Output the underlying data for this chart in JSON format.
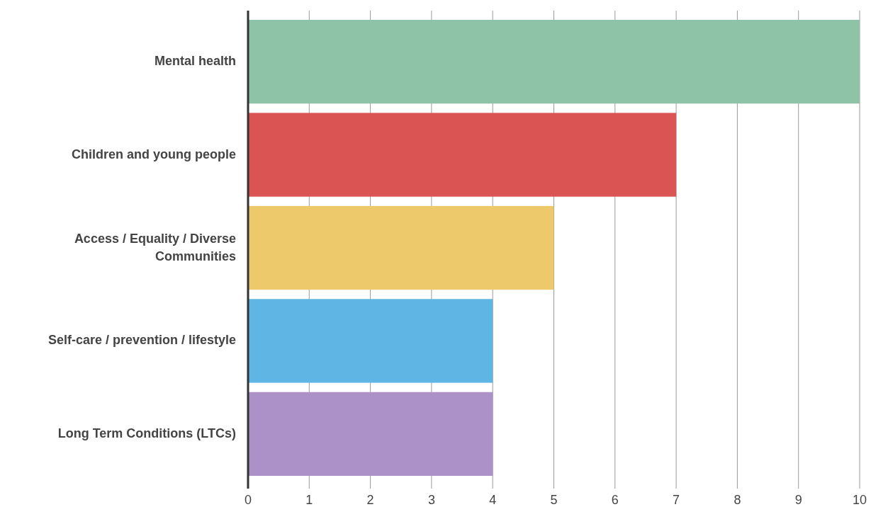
{
  "chart_data": {
    "type": "bar",
    "orientation": "horizontal",
    "categories": [
      "Mental health",
      "Children and young people",
      "Access / Equality / Diverse Communities",
      "Self-care / prevention / lifestyle",
      "Long Term Conditions (LTCs)"
    ],
    "values": [
      10,
      7,
      5,
      4,
      4
    ],
    "colors": [
      "#8ec3a7",
      "#db5454",
      "#edc96b",
      "#5fb6e5",
      "#ab91c7"
    ],
    "xlim": [
      0,
      10
    ],
    "xticks": [
      0,
      1,
      2,
      3,
      4,
      5,
      6,
      7,
      8,
      9,
      10
    ],
    "grid": "x"
  }
}
